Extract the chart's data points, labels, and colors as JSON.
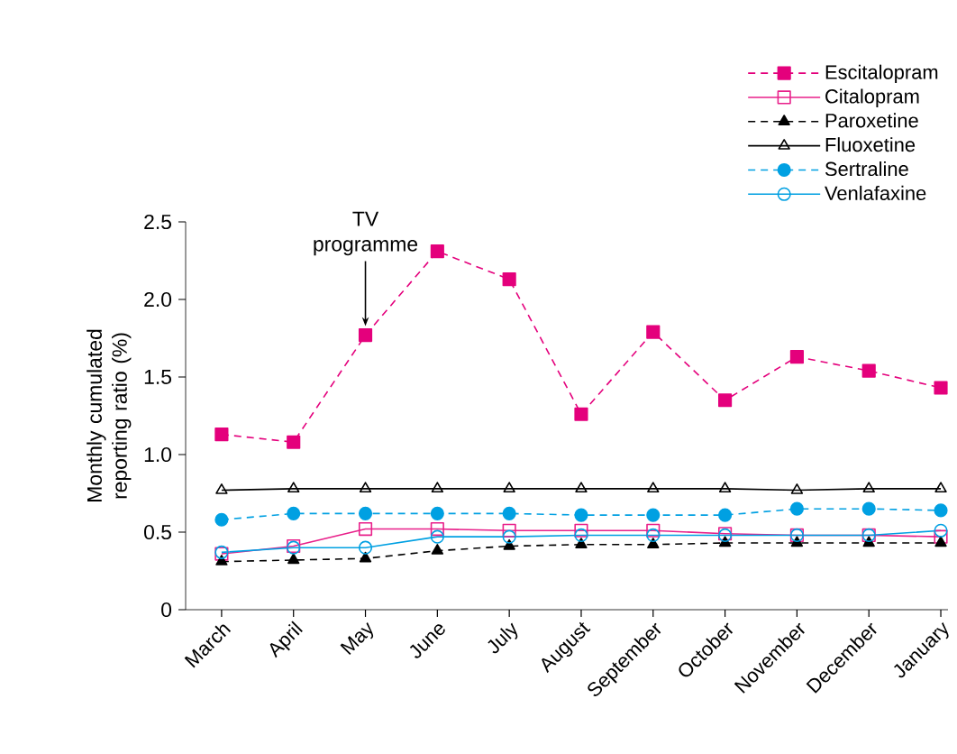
{
  "chart_data": {
    "type": "line",
    "ylabel": "Monthly cumulated reporting ratio (%)",
    "categories": [
      "March",
      "April",
      "May",
      "June",
      "July",
      "August",
      "September",
      "October",
      "November",
      "December",
      "January"
    ],
    "series": [
      {
        "name": "Escitalopram",
        "color": "#e4007c",
        "marker": "square",
        "line_style": "dashed",
        "values": [
          1.13,
          1.08,
          1.77,
          2.31,
          2.13,
          1.26,
          1.79,
          1.35,
          1.63,
          1.54,
          1.43
        ]
      },
      {
        "name": "Citalopram",
        "color": "#e8208a",
        "marker": "square",
        "line_style": "solid",
        "values": [
          0.36,
          0.41,
          0.52,
          0.52,
          0.51,
          0.51,
          0.51,
          0.49,
          0.48,
          0.48,
          0.47
        ]
      },
      {
        "name": "Paroxetine",
        "color": "#000000",
        "marker": "triangle",
        "line_style": "dashed",
        "values": [
          0.31,
          0.32,
          0.33,
          0.38,
          0.41,
          0.42,
          0.42,
          0.43,
          0.43,
          0.43,
          0.43
        ]
      },
      {
        "name": "Fluoxetine",
        "color": "#000000",
        "marker": "triangle",
        "line_style": "solid",
        "values": [
          0.77,
          0.78,
          0.78,
          0.78,
          0.78,
          0.78,
          0.78,
          0.78,
          0.77,
          0.78,
          0.78
        ]
      },
      {
        "name": "Sertraline",
        "color": "#00a0e2",
        "marker": "circle",
        "line_style": "dashed",
        "values": [
          0.58,
          0.62,
          0.62,
          0.62,
          0.62,
          0.61,
          0.61,
          0.61,
          0.65,
          0.65,
          0.64
        ]
      },
      {
        "name": "Venlafaxine",
        "color": "#00a0e2",
        "marker": "circle",
        "line_style": "solid",
        "values": [
          0.37,
          0.4,
          0.4,
          0.47,
          0.47,
          0.48,
          0.48,
          0.48,
          0.48,
          0.48,
          0.51
        ]
      }
    ],
    "ylim": [
      0,
      2.5
    ],
    "yticks": [
      0,
      {
        "value": 0.5,
        "label": "0.5"
      },
      {
        "value": 1.0,
        "label": "1.0"
      },
      {
        "value": 1.5,
        "label": "1.5"
      },
      {
        "value": 2.0,
        "label": "2.0"
      },
      {
        "value": 2.5,
        "label": "2.5"
      }
    ],
    "grid": false,
    "legend": "top right",
    "annotations": [
      {
        "text": "TV programme",
        "x": "May",
        "y": 1.77
      }
    ]
  }
}
